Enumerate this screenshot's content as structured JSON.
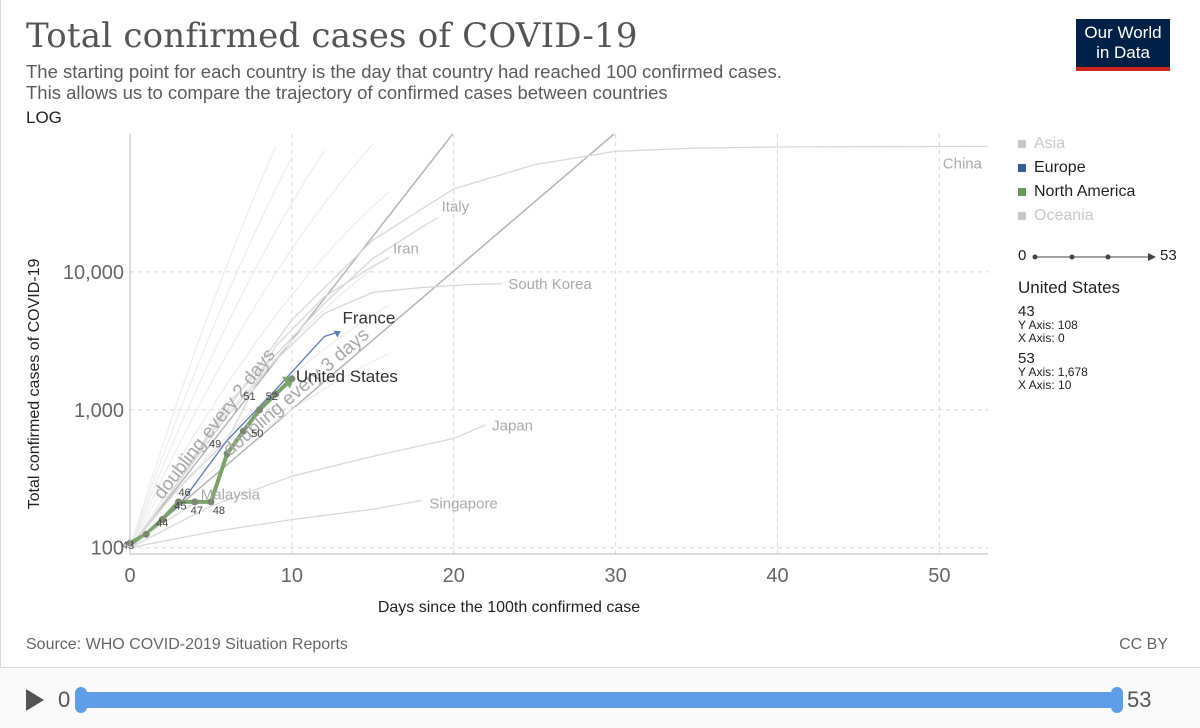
{
  "title": "Total confirmed cases of COVID-19",
  "subtitle_lines": [
    "The starting point for each country is the day that country had reached 100 confirmed cases.",
    "This allows us to compare the trajectory of confirmed cases between countries"
  ],
  "log_toggle": "LOG",
  "logo": {
    "line1": "Our World",
    "line2": "in Data"
  },
  "legend": {
    "items": [
      {
        "label": "Asia",
        "color": "#c8c8c8",
        "active": false
      },
      {
        "label": "Europe",
        "color": "#3a5a9c",
        "active": true
      },
      {
        "label": "North America",
        "color": "#6a9a5a",
        "active": true
      },
      {
        "label": "Oceania",
        "color": "#c8c8c8",
        "active": false
      }
    ]
  },
  "legend_timeline": {
    "start": "0",
    "end": "53"
  },
  "selection": {
    "country": "United States",
    "points": [
      {
        "day": "43",
        "y_text": "Y Axis: 108",
        "x_text": "X Axis: 0"
      },
      {
        "day": "53",
        "y_text": "Y Axis: 1,678",
        "x_text": "X Axis: 10"
      }
    ]
  },
  "source": "Source: WHO COVID-2019 Situation Reports",
  "license": "CC BY",
  "timeline": {
    "start": "0",
    "end": "53",
    "start_value": 0,
    "end_value": 53,
    "min": 0,
    "max": 53
  },
  "chart_data": {
    "type": "line",
    "title": "Total confirmed cases of COVID-19",
    "xlabel": "Days since the 100th confirmed case",
    "ylabel": "Total confirmed cases of COVID-19",
    "xlim": [
      0,
      53
    ],
    "ylim": [
      90,
      100000
    ],
    "y_scale": "log",
    "x_ticks": [
      0,
      10,
      20,
      30,
      40,
      50
    ],
    "y_ticks": [
      {
        "value": 100,
        "label": "100"
      },
      {
        "value": 1000,
        "label": "1,000"
      },
      {
        "value": 10000,
        "label": "10,000"
      }
    ],
    "grid": true,
    "legend_position": "right",
    "reference_lines": [
      {
        "label": "doubling every 2 days",
        "doubling_days": 2,
        "start": 100
      },
      {
        "label": "doubling every 3 days",
        "doubling_days": 3,
        "start": 100
      }
    ],
    "series": [
      {
        "name": "China",
        "region": "Asia",
        "highlight": false,
        "x": [
          0,
          3,
          6,
          10,
          15,
          20,
          25,
          30,
          35,
          40,
          45,
          50,
          53
        ],
        "y": [
          100,
          300,
          1000,
          4500,
          17000,
          40000,
          60000,
          75000,
          79000,
          80500,
          81000,
          81200,
          81300
        ]
      },
      {
        "name": "Italy",
        "region": "Europe",
        "highlight": false,
        "x": [
          0,
          3,
          6,
          9,
          12,
          15,
          18,
          19
        ],
        "y": [
          100,
          300,
          1100,
          2500,
          5900,
          12500,
          21000,
          24700
        ]
      },
      {
        "name": "Iran",
        "region": "Asia",
        "highlight": false,
        "x": [
          0,
          3,
          6,
          9,
          12,
          15,
          16
        ],
        "y": [
          100,
          270,
          600,
          2900,
          6600,
          11000,
          12700
        ]
      },
      {
        "name": "South Korea",
        "region": "Asia",
        "highlight": false,
        "x": [
          0,
          3,
          6,
          9,
          12,
          15,
          18,
          21,
          23
        ],
        "y": [
          100,
          300,
          900,
          2300,
          5000,
          7100,
          7700,
          8100,
          8200
        ]
      },
      {
        "name": "France",
        "region": "Europe",
        "highlight": false,
        "x": [
          0,
          3,
          6,
          9,
          12,
          13
        ],
        "y": [
          100,
          200,
          600,
          1400,
          3400,
          3700
        ]
      },
      {
        "name": "United States",
        "region": "North America",
        "highlight": true,
        "x": [
          0,
          1,
          2,
          3,
          4,
          5,
          6,
          7,
          8,
          9,
          10
        ],
        "y": [
          108,
          125,
          160,
          215,
          215,
          215,
          480,
          700,
          1000,
          1300,
          1678
        ],
        "point_labels": [
          "43",
          "44",
          "45",
          "46",
          "47",
          "48",
          "49",
          "50",
          "51",
          "52",
          "53"
        ]
      },
      {
        "name": "Japan",
        "region": "Asia",
        "highlight": false,
        "x": [
          0,
          5,
          10,
          15,
          20,
          22
        ],
        "y": [
          100,
          200,
          330,
          460,
          620,
          780
        ]
      },
      {
        "name": "Malaysia",
        "region": "Asia",
        "highlight": false,
        "x": [
          0,
          2,
          4
        ],
        "y": [
          100,
          150,
          210
        ]
      },
      {
        "name": "Singapore",
        "region": "Asia",
        "highlight": false,
        "x": [
          0,
          5,
          10,
          15,
          18
        ],
        "y": [
          100,
          130,
          160,
          190,
          220
        ]
      }
    ]
  }
}
